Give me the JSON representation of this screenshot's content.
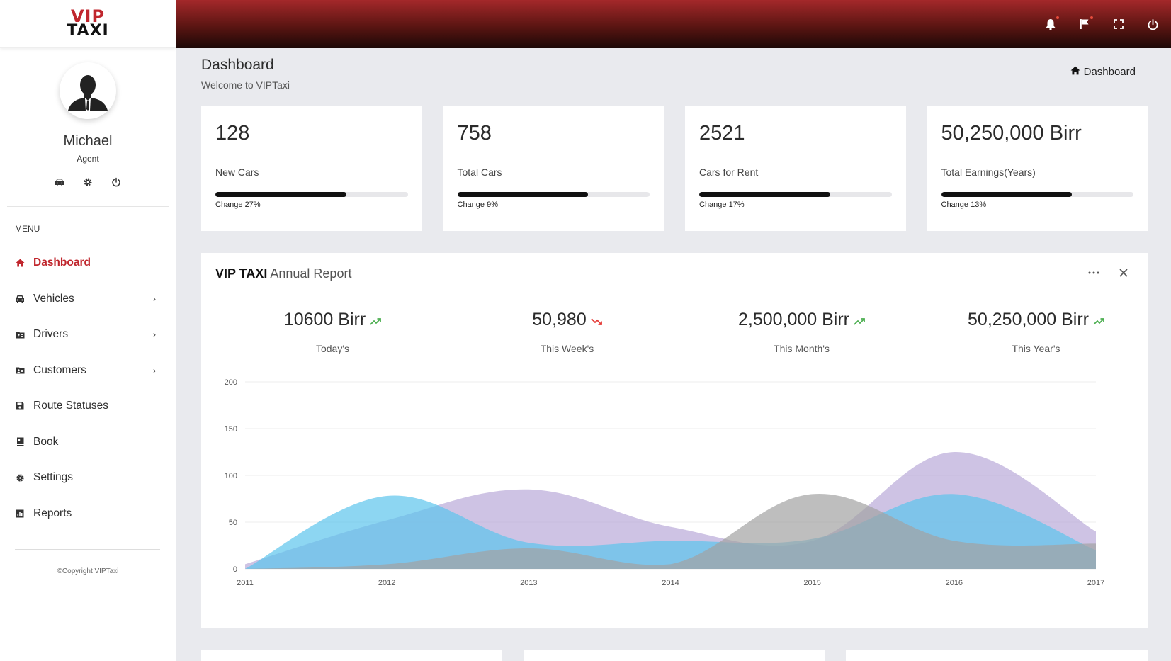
{
  "brand": {
    "logo_top": "VIP",
    "logo_bottom": "TAXI"
  },
  "profile": {
    "name": "Michael",
    "role": "Agent"
  },
  "menu": {
    "title": "MENU",
    "items": [
      {
        "label": "Dashboard",
        "icon": "home-icon",
        "active": true
      },
      {
        "label": "Vehicles",
        "icon": "car-icon",
        "has_children": true
      },
      {
        "label": "Drivers",
        "icon": "id-card-icon",
        "has_children": true
      },
      {
        "label": "Customers",
        "icon": "id-card-icon",
        "has_children": true
      },
      {
        "label": "Route Statuses",
        "icon": "save-icon"
      },
      {
        "label": "Book",
        "icon": "book-icon"
      },
      {
        "label": "Settings",
        "icon": "gear-icon"
      },
      {
        "label": "Reports",
        "icon": "bar-chart-icon"
      }
    ]
  },
  "copyright": "©Copyright VIPTaxi",
  "topbar": {
    "icons": [
      "bell-icon",
      "flag-icon",
      "fullscreen-icon",
      "power-icon"
    ]
  },
  "page": {
    "title": "Dashboard",
    "subtitle": "Welcome to VIPTaxi",
    "breadcrumb": "Dashboard"
  },
  "stats": [
    {
      "value": "128",
      "label": "New Cars",
      "change": "Change 27%",
      "progress": 0.68
    },
    {
      "value": "758",
      "label": "Total Cars",
      "change": "Change 9%",
      "progress": 0.68
    },
    {
      "value": "2521",
      "label": "Cars for Rent",
      "change": "Change 17%",
      "progress": 0.68
    },
    {
      "value": "50,250,000 Birr",
      "label": "Total Earnings(Years)",
      "change": "Change 13%",
      "progress": 0.68
    }
  ],
  "report": {
    "title_bold": "VIP TAXI",
    "title_light": "Annual Report",
    "kpis": [
      {
        "value": "10600 Birr",
        "label": "Today's",
        "trend": "up"
      },
      {
        "value": "50,980",
        "label": "This Week's",
        "trend": "down"
      },
      {
        "value": "2,500,000 Birr",
        "label": "This Month's",
        "trend": "up"
      },
      {
        "value": "50,250,000 Birr",
        "label": "This Year's",
        "trend": "up"
      }
    ]
  },
  "colors": {
    "accent": "#c0262d",
    "up": "#4caf50",
    "down": "#e53935"
  },
  "chart_data": {
    "type": "area",
    "x": [
      2011,
      2012,
      2013,
      2014,
      2015,
      2016,
      2017
    ],
    "xticks": [
      "2011",
      "2012",
      "2013",
      "2014",
      "2015",
      "2016",
      "2017"
    ],
    "yticks": [
      "0",
      "50",
      "100",
      "150",
      "200"
    ],
    "ylim": [
      0,
      200
    ],
    "grid": true,
    "series": [
      {
        "color": "#b9a9d9",
        "values": [
          5,
          52,
          85,
          45,
          30,
          125,
          40
        ]
      },
      {
        "color": "#5cc4ec",
        "values": [
          0,
          78,
          28,
          30,
          32,
          80,
          20
        ]
      },
      {
        "color": "#a3a3a3",
        "values": [
          0,
          5,
          22,
          5,
          80,
          30,
          27
        ]
      }
    ]
  }
}
